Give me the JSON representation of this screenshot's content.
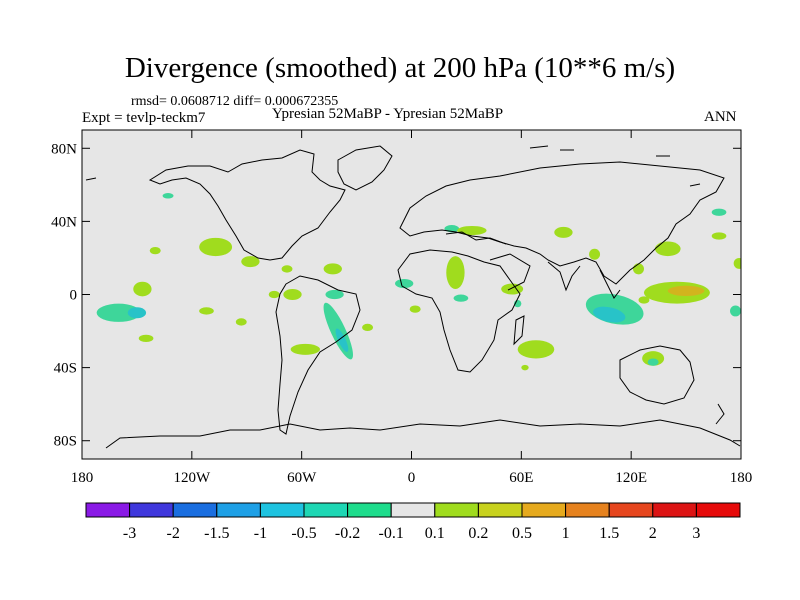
{
  "header": {
    "title": "Divergence (smoothed) at 200 hPa (10**6 m/s)",
    "stats": "rmsd= 0.0608712 diff= 0.000672355",
    "expt": "Expt = tevlp-teckm7",
    "subtitle": "Ypresian  52MaBP - Ypresian  52MaBP",
    "period": "ANN"
  },
  "chart_data": {
    "type": "heatmap",
    "title": "Divergence (smoothed) at 200 hPa (10**6 m/s)",
    "projection": "cylindrical-equidistant",
    "x_range": [
      -180,
      180
    ],
    "y_range": [
      -90,
      90
    ],
    "x_ticks": [
      {
        "value": -180,
        "label": "180"
      },
      {
        "value": -120,
        "label": "120W"
      },
      {
        "value": -60,
        "label": "60W"
      },
      {
        "value": 0,
        "label": "0"
      },
      {
        "value": 60,
        "label": "60E"
      },
      {
        "value": 120,
        "label": "120E"
      },
      {
        "value": 180,
        "label": "180"
      }
    ],
    "y_ticks": [
      {
        "value": 80,
        "label": "80N"
      },
      {
        "value": 40,
        "label": "40N"
      },
      {
        "value": 0,
        "label": "0"
      },
      {
        "value": -40,
        "label": "40S"
      },
      {
        "value": -80,
        "label": "80S"
      }
    ],
    "colorbar": {
      "labels": [
        "-3",
        "-2",
        "-1.5",
        "-1",
        "-0.5",
        "-0.2",
        "-0.1",
        "0.1",
        "0.2",
        "0.5",
        "1",
        "1.5",
        "2",
        "3"
      ],
      "colors": [
        "#8a1ae6",
        "#3f37dc",
        "#1a6ee0",
        "#1ea0e6",
        "#1ec3e0",
        "#1ed7b4",
        "#1edc8c",
        "#e6e6e6",
        "#a0dc1e",
        "#c8d21e",
        "#e6aa1e",
        "#e6821e",
        "#e6461e",
        "#dc1414"
      ]
    },
    "regions": [
      {
        "lon": -160,
        "lat": -10,
        "rx": 12,
        "ry": 5,
        "level": "-0.1"
      },
      {
        "lon": -150,
        "lat": -10,
        "rx": 5,
        "ry": 3,
        "level": "-0.2"
      },
      {
        "lon": -147,
        "lat": 3,
        "rx": 5,
        "ry": 4,
        "level": "0.1"
      },
      {
        "lon": -140,
        "lat": 24,
        "rx": 3,
        "ry": 2,
        "level": "0.1"
      },
      {
        "lon": -133,
        "lat": 54,
        "rx": 3,
        "ry": 1.5,
        "level": "-0.1"
      },
      {
        "lon": -145,
        "lat": -24,
        "rx": 4,
        "ry": 2,
        "level": "0.1"
      },
      {
        "lon": -112,
        "lat": -9,
        "rx": 4,
        "ry": 2,
        "level": "0.1"
      },
      {
        "lon": -107,
        "lat": 26,
        "rx": 9,
        "ry": 5,
        "level": "0.1"
      },
      {
        "lon": -88,
        "lat": 18,
        "rx": 5,
        "ry": 3,
        "level": "0.1"
      },
      {
        "lon": -68,
        "lat": 14,
        "rx": 3,
        "ry": 2,
        "level": "0.1"
      },
      {
        "lon": -75,
        "lat": 0,
        "rx": 3,
        "ry": 2,
        "level": "0.1"
      },
      {
        "lon": -65,
        "lat": 0,
        "rx": 5,
        "ry": 3,
        "level": "0.1"
      },
      {
        "lon": -93,
        "lat": -15,
        "rx": 3,
        "ry": 2,
        "level": "0.1"
      },
      {
        "lon": -42,
        "lat": 0,
        "rx": 5,
        "ry": 2.5,
        "level": "-0.1"
      },
      {
        "lon": -58,
        "lat": -30,
        "rx": 8,
        "ry": 3,
        "level": "0.1"
      },
      {
        "lon": -40,
        "lat": -20,
        "rx": 4,
        "ry": 17,
        "level": "-0.1",
        "rot": -25
      },
      {
        "lon": -38,
        "lat": -25,
        "rx": 2,
        "ry": 7,
        "level": "-0.2",
        "rot": -25
      },
      {
        "lon": -24,
        "lat": -18,
        "rx": 3,
        "ry": 2,
        "level": "0.1"
      },
      {
        "lon": -43,
        "lat": 14,
        "rx": 5,
        "ry": 3,
        "level": "0.1"
      },
      {
        "lon": -4,
        "lat": 6,
        "rx": 5,
        "ry": 2.5,
        "level": "-0.1"
      },
      {
        "lon": 2,
        "lat": -8,
        "rx": 3,
        "ry": 2,
        "level": "0.1"
      },
      {
        "lon": 24,
        "lat": 12,
        "rx": 5,
        "ry": 9,
        "level": "0.1"
      },
      {
        "lon": 27,
        "lat": -2,
        "rx": 4,
        "ry": 2,
        "level": "-0.1"
      },
      {
        "lon": 22,
        "lat": 36,
        "rx": 4,
        "ry": 2,
        "level": "-0.1"
      },
      {
        "lon": 33,
        "lat": 35,
        "rx": 8,
        "ry": 2.5,
        "level": "0.1"
      },
      {
        "lon": 55,
        "lat": 3,
        "rx": 6,
        "ry": 3,
        "level": "0.1"
      },
      {
        "lon": 58,
        "lat": -5,
        "rx": 2,
        "ry": 2,
        "level": "-0.1"
      },
      {
        "lon": 68,
        "lat": -30,
        "rx": 10,
        "ry": 5,
        "level": "0.1"
      },
      {
        "lon": 62,
        "lat": -40,
        "rx": 2,
        "ry": 1.5,
        "level": "0.1"
      },
      {
        "lon": 83,
        "lat": 34,
        "rx": 5,
        "ry": 3,
        "level": "0.1"
      },
      {
        "lon": 100,
        "lat": 22,
        "rx": 3,
        "ry": 3,
        "level": "0.1"
      },
      {
        "lon": 124,
        "lat": 14,
        "rx": 3,
        "ry": 3,
        "level": "0.1"
      },
      {
        "lon": 111,
        "lat": -8,
        "rx": 16,
        "ry": 8,
        "level": "-0.1",
        "rot": 12
      },
      {
        "lon": 108,
        "lat": -11,
        "rx": 9,
        "ry": 4,
        "level": "-0.2",
        "rot": 12
      },
      {
        "lon": 127,
        "lat": -3,
        "rx": 3,
        "ry": 2,
        "level": "0.1"
      },
      {
        "lon": 145,
        "lat": 1,
        "rx": 18,
        "ry": 6,
        "level": "0.1"
      },
      {
        "lon": 150,
        "lat": 2,
        "rx": 10,
        "ry": 2.8,
        "level": "0.2"
      },
      {
        "lon": 140,
        "lat": 25,
        "rx": 7,
        "ry": 4,
        "level": "0.1"
      },
      {
        "lon": 168,
        "lat": 32,
        "rx": 4,
        "ry": 2,
        "level": "0.1"
      },
      {
        "lon": 179,
        "lat": 17,
        "rx": 3,
        "ry": 3,
        "level": "0.1"
      },
      {
        "lon": 177,
        "lat": -9,
        "rx": 3,
        "ry": 3,
        "level": "-0.1"
      },
      {
        "lon": 132,
        "lat": -35,
        "rx": 6,
        "ry": 4,
        "level": "0.1"
      },
      {
        "lon": 132,
        "lat": -37,
        "rx": 3,
        "ry": 2,
        "level": "-0.1"
      },
      {
        "lon": 168,
        "lat": 45,
        "rx": 4,
        "ry": 2,
        "level": "-0.1"
      }
    ]
  }
}
